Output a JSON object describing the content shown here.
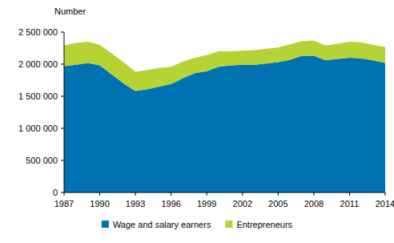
{
  "chart_data": {
    "type": "area",
    "stacked": true,
    "y_label": "Number",
    "x": [
      1987,
      1988,
      1989,
      1990,
      1991,
      1992,
      1993,
      1994,
      1995,
      1996,
      1997,
      1998,
      1999,
      2000,
      2001,
      2002,
      2003,
      2004,
      2005,
      2006,
      2007,
      2008,
      2009,
      2010,
      2011,
      2012,
      2013,
      2014
    ],
    "series": [
      {
        "name": "Wage and salary earners",
        "color": "#0072b1",
        "values": [
          1970000,
          1990000,
          2020000,
          1980000,
          1840000,
          1700000,
          1580000,
          1610000,
          1650000,
          1690000,
          1780000,
          1860000,
          1890000,
          1960000,
          1980000,
          1990000,
          1990000,
          2010000,
          2030000,
          2070000,
          2130000,
          2130000,
          2060000,
          2080000,
          2100000,
          2090000,
          2060000,
          2020000
        ]
      },
      {
        "name": "Entrepreneurs",
        "color": "#b5d334",
        "values": [
          320000,
          340000,
          330000,
          320000,
          330000,
          330000,
          300000,
          300000,
          290000,
          270000,
          260000,
          240000,
          250000,
          240000,
          220000,
          220000,
          230000,
          230000,
          230000,
          240000,
          230000,
          240000,
          230000,
          240000,
          250000,
          250000,
          240000,
          250000
        ]
      }
    ],
    "xlim": [
      1987,
      2014
    ],
    "xticks": [
      1987,
      1990,
      1993,
      1996,
      1999,
      2002,
      2005,
      2008,
      2011,
      2014
    ],
    "ylim": [
      0,
      2500000
    ],
    "yticks": [
      0,
      {
        "value": 500000,
        "label": "500 000"
      },
      {
        "value": 1000000,
        "label": "1 000 000"
      },
      {
        "value": 1500000,
        "label": "1 500 000"
      },
      {
        "value": 2000000,
        "label": "2 000 000"
      },
      {
        "value": 2500000,
        "label": "2 500 000"
      }
    ],
    "grid": false,
    "legend": "bottom"
  }
}
